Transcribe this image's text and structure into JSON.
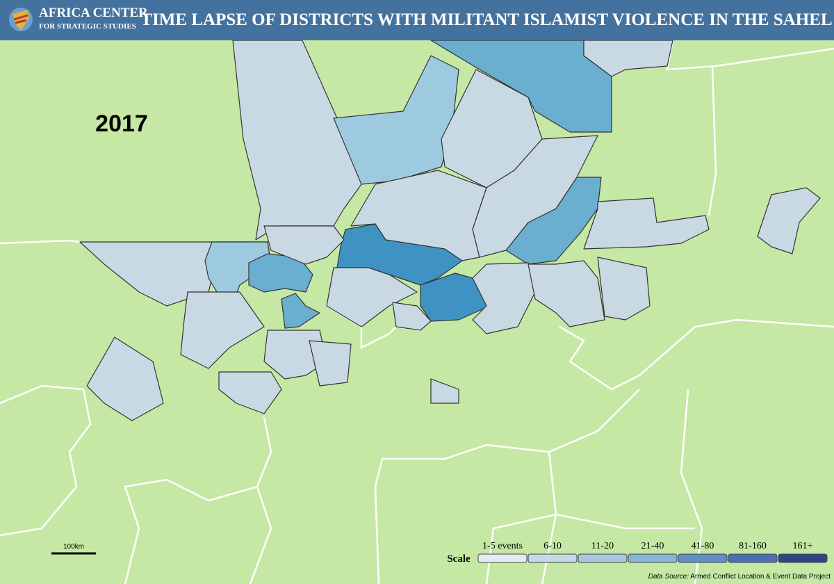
{
  "header": {
    "org_name": [
      "AFRICA CENTER",
      "FOR STRATEGIC STUDIES"
    ],
    "title": "TIME LAPSE OF DISTRICTS WITH MILITANT ISLAMIST VIOLENCE IN THE SAHEL"
  },
  "year": "2017",
  "scale_bar": "100km",
  "legend": {
    "title": "Scale",
    "items": [
      {
        "label": "1-5 events",
        "color": "#e3ecf1"
      },
      {
        "label": "6-10",
        "color": "#c5d8e6"
      },
      {
        "label": "11-20",
        "color": "#a6c9df"
      },
      {
        "label": "21-40",
        "color": "#86b5d6"
      },
      {
        "label": "41-80",
        "color": "#5f8ec8"
      },
      {
        "label": "81-160",
        "color": "#4b6fb5"
      },
      {
        "label": "161+",
        "color": "#2c4783"
      }
    ]
  },
  "source": {
    "prefix": "Data Source:",
    "text": "Armed Conflict Location & Event Data Project"
  }
}
